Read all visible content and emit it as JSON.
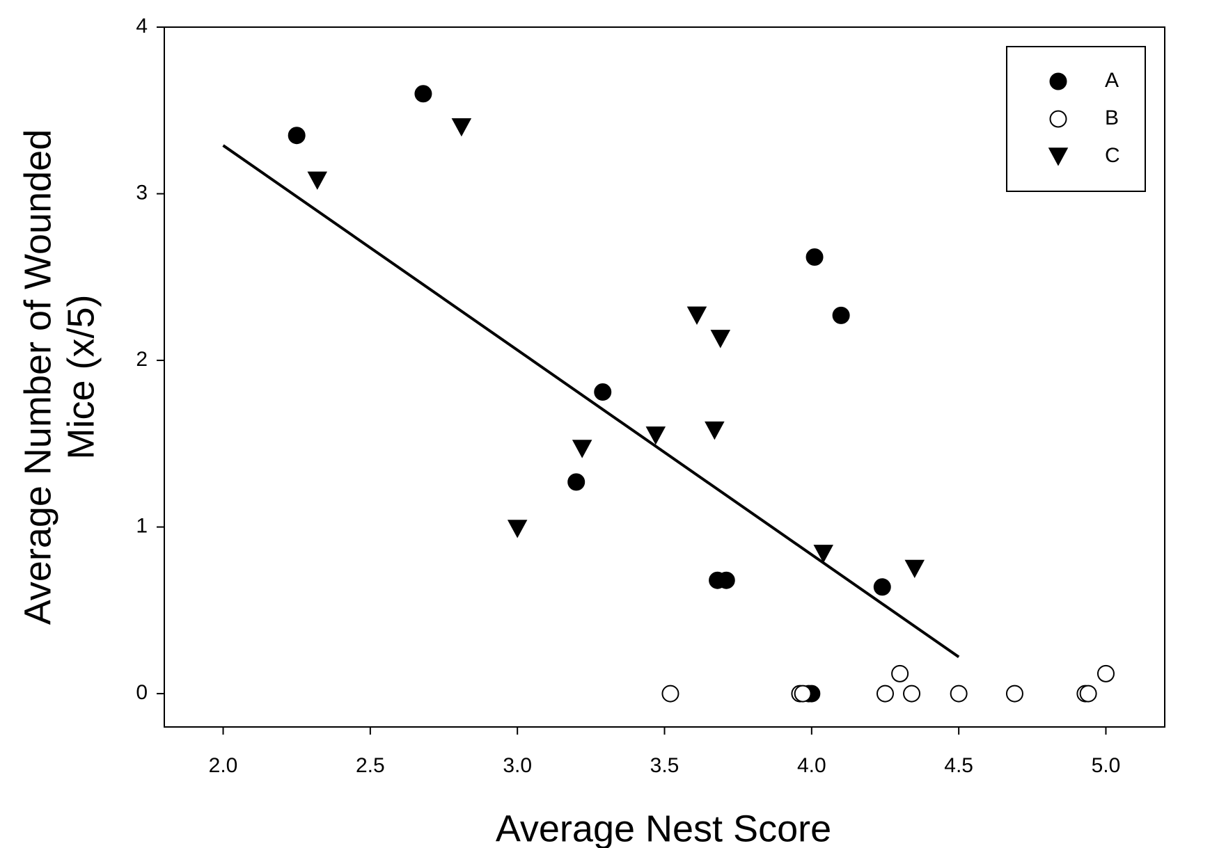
{
  "chart_data": {
    "type": "scatter",
    "xlabel": "Average Nest Score",
    "ylabel": [
      "Average Number of Wounded",
      "Mice (x/5)"
    ],
    "xlim": [
      1.8,
      5.2
    ],
    "ylim": [
      -0.2,
      4
    ],
    "xticks": [
      {
        "value": 2,
        "label": "2.0"
      },
      {
        "value": 2.5,
        "label": "2.5"
      },
      {
        "value": 3,
        "label": "3.0"
      },
      {
        "value": 3.5,
        "label": "3.5"
      },
      {
        "value": 4,
        "label": "4.0"
      },
      {
        "value": 4.5,
        "label": "4.5"
      },
      {
        "value": 5,
        "label": "5.0"
      }
    ],
    "yticks": [
      0,
      1,
      2,
      3,
      4
    ],
    "legend": "top-right",
    "series": [
      {
        "name": "A",
        "marker": "circle",
        "color": "#000000",
        "filled": true,
        "x": [
          2.25,
          2.68,
          3.29,
          3.2,
          3.68,
          3.71,
          4.01,
          4.1,
          4.24,
          3.99,
          4.0
        ],
        "values": [
          3.35,
          3.6,
          1.81,
          1.27,
          0.68,
          0.68,
          2.62,
          2.27,
          0.64,
          0,
          0
        ]
      },
      {
        "name": "B",
        "marker": "circle",
        "color": "#000000",
        "filled": false,
        "x": [
          3.52,
          3.96,
          3.97,
          4.25,
          4.3,
          4.34,
          4.5,
          4.69,
          4.93,
          4.94,
          5.0
        ],
        "values": [
          0,
          0,
          0,
          0,
          0.12,
          0,
          0,
          0,
          0,
          0,
          0.12
        ]
      },
      {
        "name": "C",
        "marker": "triangle-down",
        "color": "#000000",
        "filled": true,
        "x": [
          2.32,
          2.81,
          3.0,
          3.22,
          3.47,
          3.61,
          3.69,
          3.67,
          4.04,
          4.35
        ],
        "values": [
          3.08,
          3.4,
          0.99,
          1.47,
          1.55,
          2.27,
          2.13,
          1.58,
          0.84,
          0.75
        ]
      }
    ],
    "fit_line": {
      "color": "#000000",
      "x": [
        2.0,
        4.5
      ],
      "values": [
        3.29,
        0.22
      ]
    }
  }
}
